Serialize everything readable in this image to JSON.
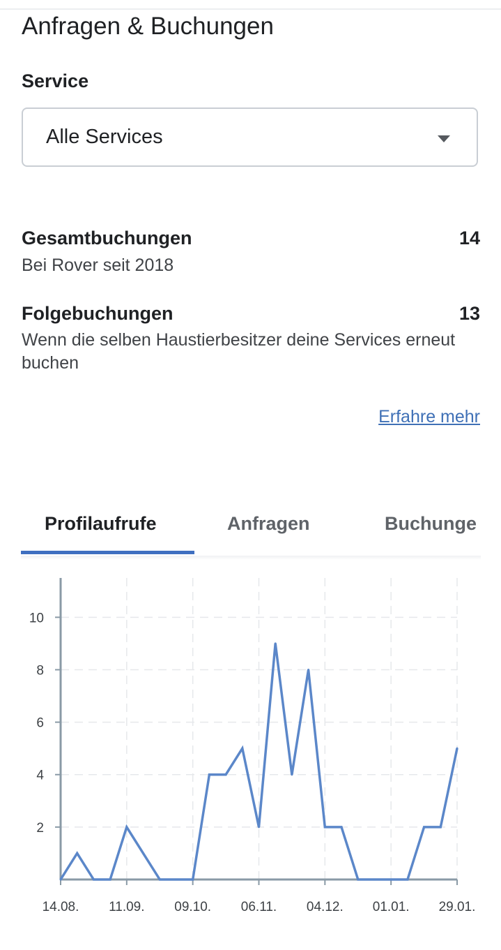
{
  "page": {
    "title": "Anfragen & Buchungen"
  },
  "service": {
    "label": "Service",
    "selected": "Alle Services",
    "caret_icon": "caret-down-icon"
  },
  "stats": [
    {
      "title": "Gesamtbuchungen",
      "value": "14",
      "description": "Bei Rover seit 2018"
    },
    {
      "title": "Folgebuchungen",
      "value": "13",
      "description": "Wenn die selben Haustierbesitzer deine Services erneut buchen"
    }
  ],
  "learn_more": "Erfahre mehr",
  "tabs": [
    {
      "label": "Profilaufrufe",
      "active": true
    },
    {
      "label": "Anfragen",
      "active": false
    },
    {
      "label": "Buchunge",
      "active": false
    }
  ],
  "colors": {
    "accent": "#3f6fc0",
    "line": "#5b87c9",
    "link": "#3f70b6"
  },
  "chart_data": {
    "type": "line",
    "x_tick_labels": [
      "14.08.",
      "11.09.",
      "09.10.",
      "06.11.",
      "04.12.",
      "01.01.",
      "29.01."
    ],
    "y_ticks": [
      2,
      4,
      6,
      8,
      10
    ],
    "ylim": [
      0,
      11.5
    ],
    "grid": true,
    "series": [
      {
        "values": [
          0,
          1,
          0,
          0,
          2,
          1,
          0,
          0,
          0,
          4,
          4,
          5,
          2,
          9,
          4,
          8,
          2,
          2,
          0,
          0,
          0,
          0,
          2,
          2,
          5
        ]
      }
    ]
  }
}
